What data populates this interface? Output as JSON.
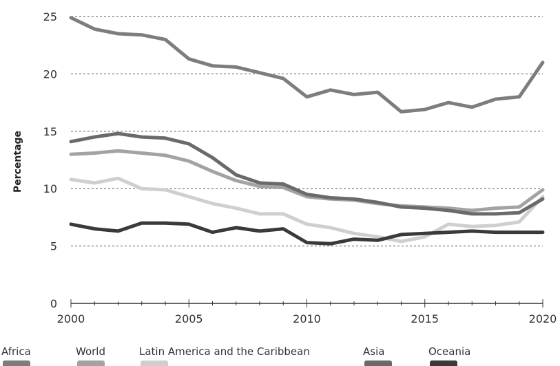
{
  "chart_data": {
    "type": "line",
    "title": "",
    "xlabel": "",
    "ylabel": "Percentage",
    "xlim": [
      2000,
      2020
    ],
    "ylim": [
      0,
      25
    ],
    "y_ticks": [
      0,
      5,
      10,
      15,
      20,
      25
    ],
    "x_ticks": [
      2000,
      2005,
      2010,
      2015,
      2020
    ],
    "grid": "horizontal dashed",
    "legend_position": "bottom",
    "x": [
      2000,
      2001,
      2002,
      2003,
      2004,
      2005,
      2006,
      2007,
      2008,
      2009,
      2010,
      2011,
      2012,
      2013,
      2014,
      2015,
      2016,
      2017,
      2018,
      2019,
      2020
    ],
    "series": [
      {
        "name": "Africa",
        "color": "#7d7d7d",
        "values": [
          24.9,
          23.9,
          23.5,
          23.4,
          23.0,
          21.3,
          20.7,
          20.6,
          20.1,
          19.6,
          18.0,
          18.6,
          18.2,
          18.4,
          16.7,
          16.9,
          17.5,
          17.1,
          17.8,
          18.0,
          21.0
        ]
      },
      {
        "name": "World",
        "color": "#a3a3a3",
        "values": [
          13.0,
          13.1,
          13.3,
          13.1,
          12.9,
          12.4,
          11.5,
          10.7,
          10.2,
          10.1,
          9.3,
          9.1,
          9.0,
          8.7,
          8.5,
          8.4,
          8.3,
          8.1,
          8.3,
          8.4,
          9.9
        ]
      },
      {
        "name": "Latin America and the Caribbean",
        "color": "#cfcfcf",
        "values": [
          10.8,
          10.5,
          10.9,
          10.0,
          9.9,
          9.3,
          8.7,
          8.3,
          7.8,
          7.8,
          6.9,
          6.6,
          6.1,
          5.8,
          5.4,
          5.8,
          6.9,
          6.7,
          6.8,
          7.1,
          9.3
        ]
      },
      {
        "name": "Asia",
        "color": "#6a6a6a",
        "values": [
          14.1,
          14.5,
          14.8,
          14.5,
          14.4,
          13.9,
          12.7,
          11.2,
          10.5,
          10.4,
          9.5,
          9.2,
          9.1,
          8.8,
          8.4,
          8.3,
          8.1,
          7.8,
          7.8,
          7.9,
          9.1
        ]
      },
      {
        "name": "Oceania",
        "color": "#3a3a3a",
        "values": [
          6.9,
          6.5,
          6.3,
          7.0,
          7.0,
          6.9,
          6.2,
          6.6,
          6.3,
          6.5,
          5.3,
          5.2,
          5.6,
          5.5,
          6.0,
          6.1,
          6.2,
          6.3,
          6.2,
          6.2,
          6.2
        ]
      }
    ]
  }
}
